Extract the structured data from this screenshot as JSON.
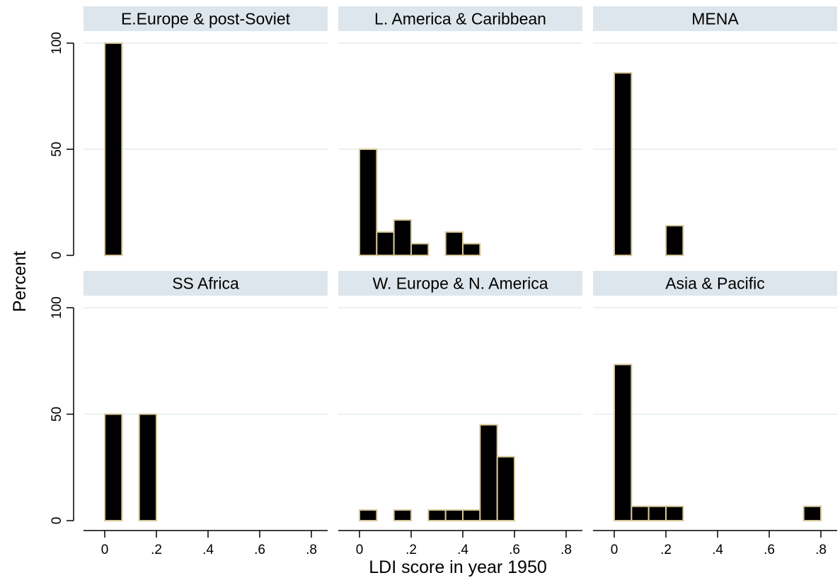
{
  "chart_data": {
    "type": "bar",
    "xlabel": "LDI score in year 1950",
    "ylabel": "Percent",
    "xlim": [
      0,
      0.8
    ],
    "ylim": [
      0,
      100
    ],
    "bin_width": 0.0667,
    "x_ticks": [
      {
        "value": 0,
        "label": "0"
      },
      {
        "value": 0.2,
        "label": ".2"
      },
      {
        "value": 0.4,
        "label": ".4"
      },
      {
        "value": 0.6,
        "label": ".6"
      },
      {
        "value": 0.8,
        "label": ".8"
      }
    ],
    "y_ticks": [
      {
        "value": 0,
        "label": "0"
      },
      {
        "value": 50,
        "label": "50"
      },
      {
        "value": 100,
        "label": "100"
      }
    ],
    "grid": true,
    "bar_fill": "#000000",
    "bar_edge": "#d6c89a",
    "strip_fill": "#dde6ec",
    "panels": [
      {
        "title": "E.Europe & post-Soviet",
        "bins": [
          {
            "x": 0.0,
            "y": 100
          }
        ]
      },
      {
        "title": "L. America & Caribbean",
        "bins": [
          {
            "x": 0.0,
            "y": 50
          },
          {
            "x": 0.0667,
            "y": 11
          },
          {
            "x": 0.1333,
            "y": 16.7
          },
          {
            "x": 0.2,
            "y": 5.5
          },
          {
            "x": 0.3333,
            "y": 11
          },
          {
            "x": 0.4,
            "y": 5.5
          }
        ]
      },
      {
        "title": "MENA",
        "bins": [
          {
            "x": 0.0,
            "y": 86
          },
          {
            "x": 0.2,
            "y": 14
          }
        ]
      },
      {
        "title": "SS Africa",
        "bins": [
          {
            "x": 0.0,
            "y": 50
          },
          {
            "x": 0.1333,
            "y": 50
          }
        ]
      },
      {
        "title": "W. Europe & N. America",
        "bins": [
          {
            "x": 0.0,
            "y": 5
          },
          {
            "x": 0.1333,
            "y": 5
          },
          {
            "x": 0.2667,
            "y": 5
          },
          {
            "x": 0.3333,
            "y": 5
          },
          {
            "x": 0.4,
            "y": 5
          },
          {
            "x": 0.4667,
            "y": 45
          },
          {
            "x": 0.5333,
            "y": 30
          }
        ]
      },
      {
        "title": "Asia & Pacific",
        "bins": [
          {
            "x": 0.0,
            "y": 73.3
          },
          {
            "x": 0.0667,
            "y": 6.7
          },
          {
            "x": 0.1333,
            "y": 6.7
          },
          {
            "x": 0.2,
            "y": 6.7
          },
          {
            "x": 0.7333,
            "y": 6.7
          }
        ]
      }
    ]
  }
}
